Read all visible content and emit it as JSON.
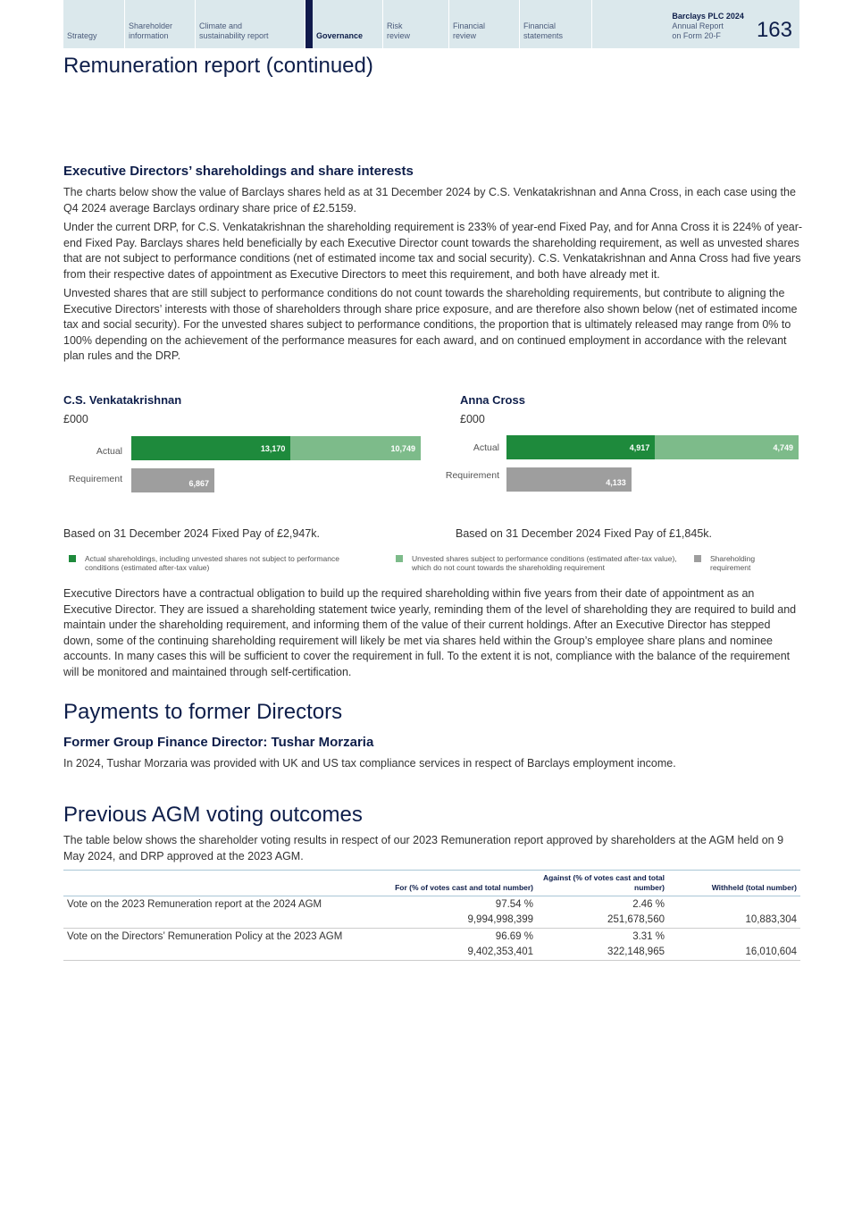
{
  "nav": {
    "items": [
      "Strategy",
      "Shareholder information",
      "Climate and sustainability report",
      "Governance",
      "Risk review",
      "Financial review",
      "Financial statements"
    ],
    "active": "Governance",
    "brand_title": "Barclays PLC 2024",
    "brand_line1": "Annual Report",
    "brand_line2": "on Form 20-F",
    "page_number": "163"
  },
  "page_title": "Remuneration report (continued)",
  "shareholdings": {
    "heading": "Executive Directors’ shareholdings and share interests",
    "paragraphs": [
      "The charts below show the value of Barclays shares held as at 31 December 2024 by C.S. Venkatakrishnan and Anna Cross, in each case using the Q4 2024 average Barclays ordinary share price of £2.5159.",
      "Under the current DRP, for C.S. Venkatakrishnan the shareholding requirement is 233% of year-end Fixed Pay, and for Anna Cross it is 224% of year-end Fixed Pay. Barclays shares held beneficially by each Executive Director count towards the shareholding requirement, as well as unvested shares that are not subject to performance conditions (net of estimated income tax and social security). C.S. Venkatakrishnan and Anna Cross had five years from their respective dates of appointment as Executive Directors to meet this requirement, and both have already met it.",
      "Unvested shares that are still subject to performance conditions do not count towards the shareholding requirements, but contribute to aligning the Executive Directors’ interests with those of shareholders through share price exposure, and are therefore also shown below (net of estimated income tax and social security). For the unvested shares subject to performance conditions, the proportion that is ultimately released may range from 0% to 100% depending on the achievement of the performance measures for each award, and on continued employment in accordance with the relevant plan rules and the DRP."
    ],
    "after": "Executive Directors have a contractual obligation to build up the required shareholding within five years from their date of appointment as an Executive Director. They are issued a shareholding statement twice yearly, reminding them of the level of shareholding they are required to build and maintain under the shareholding requirement, and informing them of the value of their current holdings. After an Executive Director has stepped down, some of the continuing shareholding requirement will likely be met via shares held within the Group’s employee share plans and nominee accounts. In many cases this will be sufficient to cover the requirement in full. To the extent it is not, compliance with the balance of the requirement will be monitored and maintained through self-certification."
  },
  "legend": [
    {
      "label": "Actual shareholdings, including unvested shares not subject to performance conditions (estimated after-tax value)",
      "color": "#1e8a3c"
    },
    {
      "label": "Unvested shares subject to performance conditions (estimated after-tax value), which do not count towards the shareholding requirement",
      "color": "#7dbb8a"
    },
    {
      "label": "Shareholding requirement",
      "color": "#9e9e9e"
    }
  ],
  "chart_data": [
    {
      "type": "bar",
      "orientation": "horizontal",
      "stacked": true,
      "title": "C.S. Venkatakrishnan",
      "unit": "£000",
      "categories": [
        "Actual",
        "Requirement"
      ],
      "actual": 13170,
      "unvested": 10749,
      "requirement": 6867,
      "labels": [
        "13,170",
        "10,749",
        "6,867"
      ],
      "note": "Based on 31 December 2024 Fixed Pay of £2,947k."
    },
    {
      "type": "bar",
      "orientation": "horizontal",
      "stacked": true,
      "title": "Anna Cross",
      "unit": "£000",
      "categories": [
        "Actual",
        "Requirement"
      ],
      "actual": 4917,
      "unvested": 4749,
      "requirement": 4133,
      "labels": [
        "4,917",
        "4,749",
        "4,133"
      ],
      "note": "Based on 31 December 2024 Fixed Pay of £1,845k."
    }
  ],
  "payments": {
    "heading": "Payments to former Directors",
    "subheading": "Former Group Finance Director: Tushar Morzaria",
    "text": "In 2024, Tushar Morzaria was provided with UK and US tax compliance services in respect of Barclays employment income."
  },
  "agm": {
    "heading": "Previous AGM voting outcomes",
    "text": "The table below shows the shareholder voting results in respect of our 2023 Remuneration report approved by shareholders at the AGM held on 9 May 2024, and DRP approved at the 2023 AGM.",
    "columns": [
      "",
      "For (% of votes cast and total number)",
      "Against (% of votes cast and total number)",
      "Withheld (total number)"
    ],
    "rows": [
      {
        "label": "Vote on the 2023 Remuneration report at the 2024 AGM",
        "for_pct": "97.54 %",
        "against_pct": "2.46 %",
        "for_num": "9,994,998,399",
        "against_num": "251,678,560",
        "withheld": "10,883,304"
      },
      {
        "label": "Vote on the Directors’ Remuneration Policy at the 2023 AGM",
        "for_pct": "96.69 %",
        "against_pct": "3.31 %",
        "for_num": "9,402,353,401",
        "against_num": "322,148,965",
        "withheld": "16,010,604"
      }
    ]
  }
}
